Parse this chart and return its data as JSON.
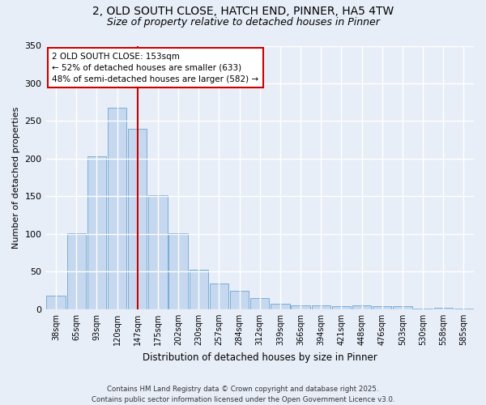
{
  "title_line1": "2, OLD SOUTH CLOSE, HATCH END, PINNER, HA5 4TW",
  "title_line2": "Size of property relative to detached houses in Pinner",
  "xlabel": "Distribution of detached houses by size in Pinner",
  "ylabel": "Number of detached properties",
  "bar_color": "#c5d8f0",
  "bar_edge_color": "#7aadd4",
  "bg_color": "#e8eef8",
  "grid_color": "#ffffff",
  "categories": [
    "38sqm",
    "65sqm",
    "93sqm",
    "120sqm",
    "147sqm",
    "175sqm",
    "202sqm",
    "230sqm",
    "257sqm",
    "284sqm",
    "312sqm",
    "339sqm",
    "366sqm",
    "394sqm",
    "421sqm",
    "448sqm",
    "476sqm",
    "503sqm",
    "530sqm",
    "558sqm",
    "585sqm"
  ],
  "values": [
    18,
    101,
    203,
    268,
    240,
    151,
    101,
    53,
    34,
    25,
    15,
    7,
    5,
    5,
    4,
    5,
    4,
    4,
    1,
    2,
    1
  ],
  "annotation_title": "2 OLD SOUTH CLOSE: 153sqm",
  "annotation_line1": "← 52% of detached houses are smaller (633)",
  "annotation_line2": "48% of semi-detached houses are larger (582) →",
  "red_line_color": "#cc0000",
  "annotation_box_color": "#ffffff",
  "annotation_box_edge": "#cc0000",
  "red_line_x": 4.0,
  "ylim": [
    0,
    350
  ],
  "yticks": [
    0,
    50,
    100,
    150,
    200,
    250,
    300,
    350
  ],
  "footnote_line1": "Contains HM Land Registry data © Crown copyright and database right 2025.",
  "footnote_line2": "Contains public sector information licensed under the Open Government Licence v3.0."
}
